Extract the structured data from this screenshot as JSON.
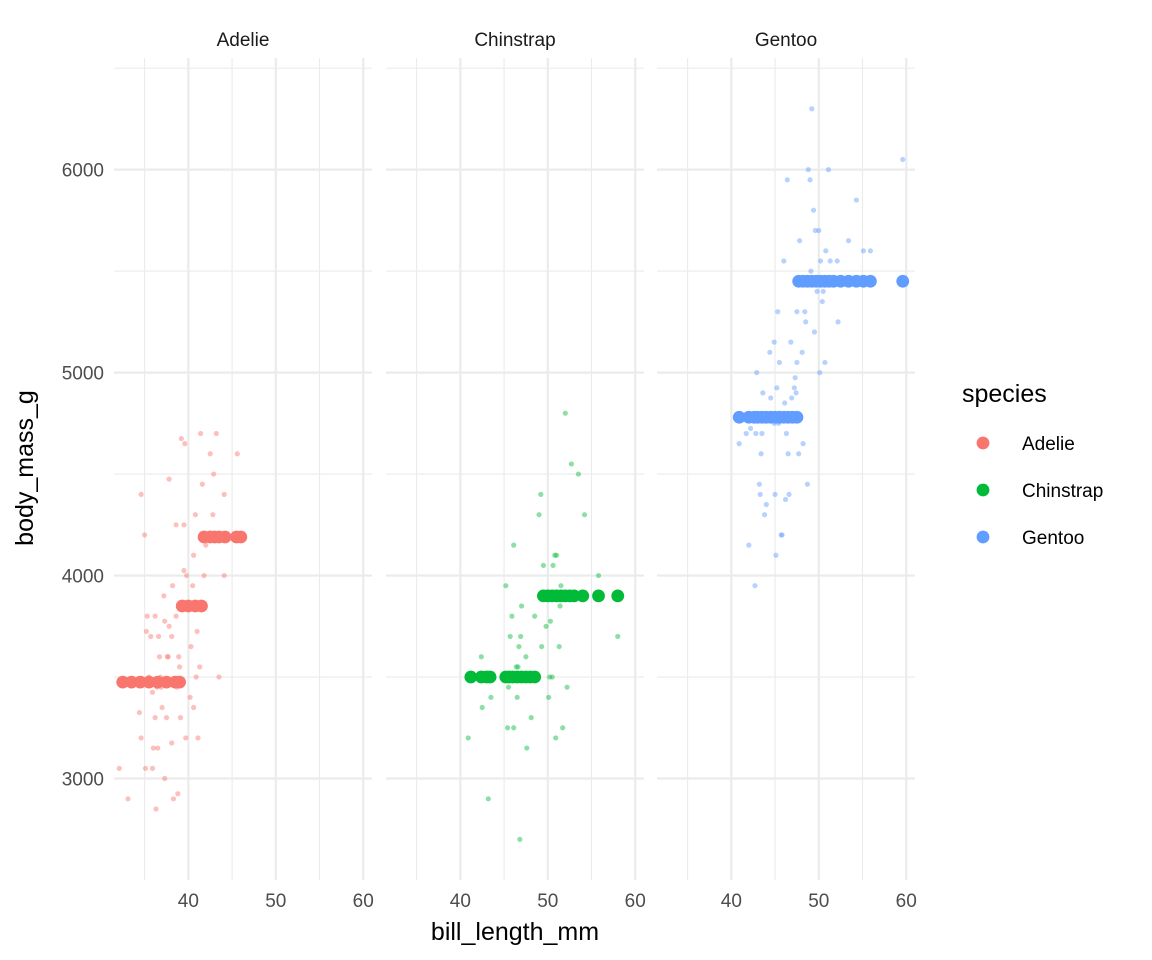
{
  "chart_data": {
    "type": "scatter",
    "facet_by": "species",
    "xlabel": "bill_length_mm",
    "ylabel": "body_mass_g",
    "xlim": [
      31.5,
      61
    ],
    "ylim": [
      2500,
      6550
    ],
    "x_ticks": [
      40,
      50,
      60
    ],
    "y_ticks": [
      3000,
      4000,
      5000,
      6000
    ],
    "grid": true,
    "legend": {
      "title": "species",
      "position": "right",
      "entries": [
        {
          "label": "Adelie",
          "color": "#F8766D"
        },
        {
          "label": "Chinstrap",
          "color": "#00BA38"
        },
        {
          "label": "Gentoo",
          "color": "#619CFF"
        }
      ]
    },
    "panels": [
      {
        "label": "Adelie",
        "color": "#F8766D",
        "summary_points": [
          [
            32.5,
            3475
          ],
          [
            33.5,
            3475
          ],
          [
            34.5,
            3475
          ],
          [
            35.5,
            3475
          ],
          [
            36.5,
            3475
          ],
          [
            37.5,
            3475
          ],
          [
            38.5,
            3475
          ],
          [
            39.0,
            3475
          ],
          [
            39.3,
            3850
          ],
          [
            40.0,
            3850
          ],
          [
            40.8,
            3850
          ],
          [
            41.5,
            3850
          ],
          [
            41.8,
            4190
          ],
          [
            42.5,
            4190
          ],
          [
            43.0,
            4190
          ],
          [
            43.5,
            4190
          ],
          [
            44.2,
            4190
          ],
          [
            45.5,
            4190
          ],
          [
            46.0,
            4190
          ]
        ],
        "raw_points": [
          [
            32.1,
            3050
          ],
          [
            33.1,
            2900
          ],
          [
            34.4,
            3325
          ],
          [
            34.6,
            3200
          ],
          [
            34.6,
            4400
          ],
          [
            35.0,
            4200
          ],
          [
            35.1,
            3050
          ],
          [
            35.2,
            3725
          ],
          [
            35.3,
            3800
          ],
          [
            35.5,
            3500
          ],
          [
            35.7,
            3700
          ],
          [
            35.9,
            3050
          ],
          [
            36.0,
            3150
          ],
          [
            36.2,
            3800
          ],
          [
            36.3,
            2850
          ],
          [
            36.4,
            3450
          ],
          [
            36.5,
            3150
          ],
          [
            36.6,
            3700
          ],
          [
            36.7,
            3600
          ],
          [
            36.8,
            3500
          ],
          [
            37.0,
            3350
          ],
          [
            37.3,
            3000
          ],
          [
            37.3,
            3775
          ],
          [
            37.5,
            3300
          ],
          [
            37.6,
            3600
          ],
          [
            37.7,
            3600
          ],
          [
            37.8,
            4475
          ],
          [
            37.8,
            3750
          ],
          [
            38.1,
            3700
          ],
          [
            38.1,
            3175
          ],
          [
            38.2,
            3950
          ],
          [
            38.3,
            2900
          ],
          [
            38.6,
            3800
          ],
          [
            38.6,
            4250
          ],
          [
            38.8,
            2925
          ],
          [
            38.9,
            3600
          ],
          [
            39.0,
            3550
          ],
          [
            39.1,
            3300
          ],
          [
            39.2,
            4675
          ],
          [
            39.5,
            4250
          ],
          [
            39.6,
            4650
          ],
          [
            39.7,
            3200
          ],
          [
            39.8,
            4000
          ],
          [
            40.2,
            3400
          ],
          [
            40.3,
            3650
          ],
          [
            40.6,
            3350
          ],
          [
            40.6,
            4100
          ],
          [
            40.8,
            4300
          ],
          [
            40.9,
            3500
          ],
          [
            41.1,
            3200
          ],
          [
            41.3,
            3550
          ],
          [
            41.4,
            4700
          ],
          [
            41.6,
            4450
          ],
          [
            41.8,
            4000
          ],
          [
            42.0,
            4150
          ],
          [
            42.5,
            4600
          ],
          [
            42.8,
            4300
          ],
          [
            42.9,
            4500
          ],
          [
            43.2,
            4700
          ],
          [
            43.5,
            3500
          ],
          [
            44.1,
            4000
          ],
          [
            44.1,
            4400
          ],
          [
            45.6,
            4600
          ],
          [
            45.8,
            4200
          ],
          [
            40.5,
            3950
          ],
          [
            39.5,
            4025
          ],
          [
            36.9,
            3450
          ],
          [
            35.9,
            3425
          ],
          [
            38.7,
            3450
          ],
          [
            41.0,
            3725
          ],
          [
            37.2,
            3900
          ],
          [
            36.2,
            3300
          ]
        ]
      },
      {
        "label": "Chinstrap",
        "color": "#00BA38",
        "summary_points": [
          [
            41.2,
            3500
          ],
          [
            42.4,
            3500
          ],
          [
            43.0,
            3500
          ],
          [
            43.4,
            3500
          ],
          [
            45.2,
            3500
          ],
          [
            45.6,
            3500
          ],
          [
            46.0,
            3500
          ],
          [
            46.5,
            3500
          ],
          [
            47.0,
            3500
          ],
          [
            47.5,
            3500
          ],
          [
            48.0,
            3500
          ],
          [
            48.5,
            3500
          ],
          [
            49.5,
            3900
          ],
          [
            50.0,
            3900
          ],
          [
            50.5,
            3900
          ],
          [
            51.0,
            3900
          ],
          [
            51.5,
            3900
          ],
          [
            52.0,
            3900
          ],
          [
            52.5,
            3900
          ],
          [
            53.0,
            3900
          ],
          [
            54.0,
            3900
          ],
          [
            55.8,
            3900
          ],
          [
            58.0,
            3900
          ]
        ],
        "raw_points": [
          [
            40.9,
            3200
          ],
          [
            42.4,
            3600
          ],
          [
            42.5,
            3350
          ],
          [
            43.2,
            2900
          ],
          [
            43.5,
            3400
          ],
          [
            45.2,
            3950
          ],
          [
            45.4,
            3250
          ],
          [
            45.5,
            3450
          ],
          [
            45.7,
            3700
          ],
          [
            45.9,
            3800
          ],
          [
            46.1,
            3250
          ],
          [
            46.1,
            4150
          ],
          [
            46.4,
            3550
          ],
          [
            46.5,
            3400
          ],
          [
            46.6,
            3550
          ],
          [
            46.7,
            3650
          ],
          [
            46.8,
            2700
          ],
          [
            46.9,
            3700
          ],
          [
            47.0,
            3850
          ],
          [
            47.5,
            3600
          ],
          [
            47.6,
            3150
          ],
          [
            47.9,
            3500
          ],
          [
            48.1,
            3300
          ],
          [
            48.5,
            3800
          ],
          [
            49.0,
            4300
          ],
          [
            49.2,
            4400
          ],
          [
            49.3,
            3650
          ],
          [
            49.5,
            4050
          ],
          [
            49.8,
            3750
          ],
          [
            50.1,
            3400
          ],
          [
            50.2,
            3500
          ],
          [
            50.3,
            3775
          ],
          [
            50.5,
            3500
          ],
          [
            50.6,
            4050
          ],
          [
            50.8,
            4100
          ],
          [
            50.9,
            3200
          ],
          [
            51.0,
            4100
          ],
          [
            51.3,
            3650
          ],
          [
            51.4,
            3850
          ],
          [
            51.5,
            3950
          ],
          [
            51.7,
            3250
          ],
          [
            52.0,
            4800
          ],
          [
            52.2,
            3450
          ],
          [
            52.7,
            4550
          ],
          [
            53.5,
            4500
          ],
          [
            54.2,
            4300
          ],
          [
            55.8,
            4000
          ],
          [
            58.0,
            3700
          ]
        ]
      },
      {
        "label": "Gentoo",
        "color": "#619CFF",
        "summary_points": [
          [
            40.9,
            4780
          ],
          [
            42.0,
            4780
          ],
          [
            42.6,
            4780
          ],
          [
            43.0,
            4780
          ],
          [
            43.5,
            4780
          ],
          [
            44.0,
            4780
          ],
          [
            44.5,
            4780
          ],
          [
            45.0,
            4780
          ],
          [
            45.5,
            4780
          ],
          [
            46.0,
            4780
          ],
          [
            46.5,
            4780
          ],
          [
            47.0,
            4780
          ],
          [
            47.5,
            4780
          ],
          [
            47.7,
            5450
          ],
          [
            48.2,
            5450
          ],
          [
            48.7,
            5450
          ],
          [
            49.2,
            5450
          ],
          [
            49.7,
            5450
          ],
          [
            50.2,
            5450
          ],
          [
            50.7,
            5450
          ],
          [
            51.2,
            5450
          ],
          [
            51.7,
            5450
          ],
          [
            52.5,
            5450
          ],
          [
            53.4,
            5450
          ],
          [
            54.3,
            5450
          ],
          [
            55.1,
            5450
          ],
          [
            55.9,
            5450
          ],
          [
            59.6,
            5450
          ]
        ],
        "raw_points": [
          [
            40.9,
            4650
          ],
          [
            41.7,
            4700
          ],
          [
            42.0,
            4150
          ],
          [
            42.2,
            4725
          ],
          [
            42.7,
            3950
          ],
          [
            42.8,
            4700
          ],
          [
            42.9,
            5000
          ],
          [
            43.2,
            4450
          ],
          [
            43.3,
            4400
          ],
          [
            43.4,
            4600
          ],
          [
            43.5,
            4700
          ],
          [
            43.6,
            4900
          ],
          [
            43.8,
            4300
          ],
          [
            44.0,
            4350
          ],
          [
            44.4,
            5100
          ],
          [
            44.5,
            4875
          ],
          [
            44.9,
            4750
          ],
          [
            45.0,
            4400
          ],
          [
            45.1,
            4100
          ],
          [
            45.2,
            4925
          ],
          [
            45.3,
            5300
          ],
          [
            45.4,
            4750
          ],
          [
            45.5,
            5050
          ],
          [
            45.7,
            4200
          ],
          [
            45.8,
            4200
          ],
          [
            46.1,
            4850
          ],
          [
            46.2,
            4375
          ],
          [
            46.3,
            4700
          ],
          [
            46.4,
            5950
          ],
          [
            46.5,
            4600
          ],
          [
            46.6,
            4400
          ],
          [
            46.8,
            5150
          ],
          [
            46.9,
            4875
          ],
          [
            47.2,
            4925
          ],
          [
            47.3,
            4975
          ],
          [
            47.4,
            4900
          ],
          [
            47.5,
            5050
          ],
          [
            47.7,
            4600
          ],
          [
            47.8,
            5650
          ],
          [
            48.1,
            5100
          ],
          [
            48.2,
            4650
          ],
          [
            48.4,
            5300
          ],
          [
            48.5,
            5250
          ],
          [
            48.7,
            4450
          ],
          [
            48.8,
            6000
          ],
          [
            49.0,
            5950
          ],
          [
            49.1,
            5500
          ],
          [
            49.2,
            6300
          ],
          [
            49.4,
            5800
          ],
          [
            49.5,
            5200
          ],
          [
            49.6,
            5700
          ],
          [
            49.8,
            5400
          ],
          [
            50.0,
            5700
          ],
          [
            50.1,
            5000
          ],
          [
            50.2,
            5550
          ],
          [
            50.4,
            5350
          ],
          [
            50.5,
            5400
          ],
          [
            50.7,
            5050
          ],
          [
            50.8,
            5600
          ],
          [
            51.1,
            6000
          ],
          [
            51.3,
            5550
          ],
          [
            52.1,
            5550
          ],
          [
            52.2,
            5250
          ],
          [
            53.4,
            5650
          ],
          [
            54.3,
            5850
          ],
          [
            55.1,
            5600
          ],
          [
            55.9,
            5600
          ],
          [
            59.6,
            6050
          ],
          [
            45.5,
            4800
          ],
          [
            46.0,
            5550
          ],
          [
            44.9,
            5150
          ],
          [
            47.5,
            5300
          ]
        ]
      }
    ]
  }
}
